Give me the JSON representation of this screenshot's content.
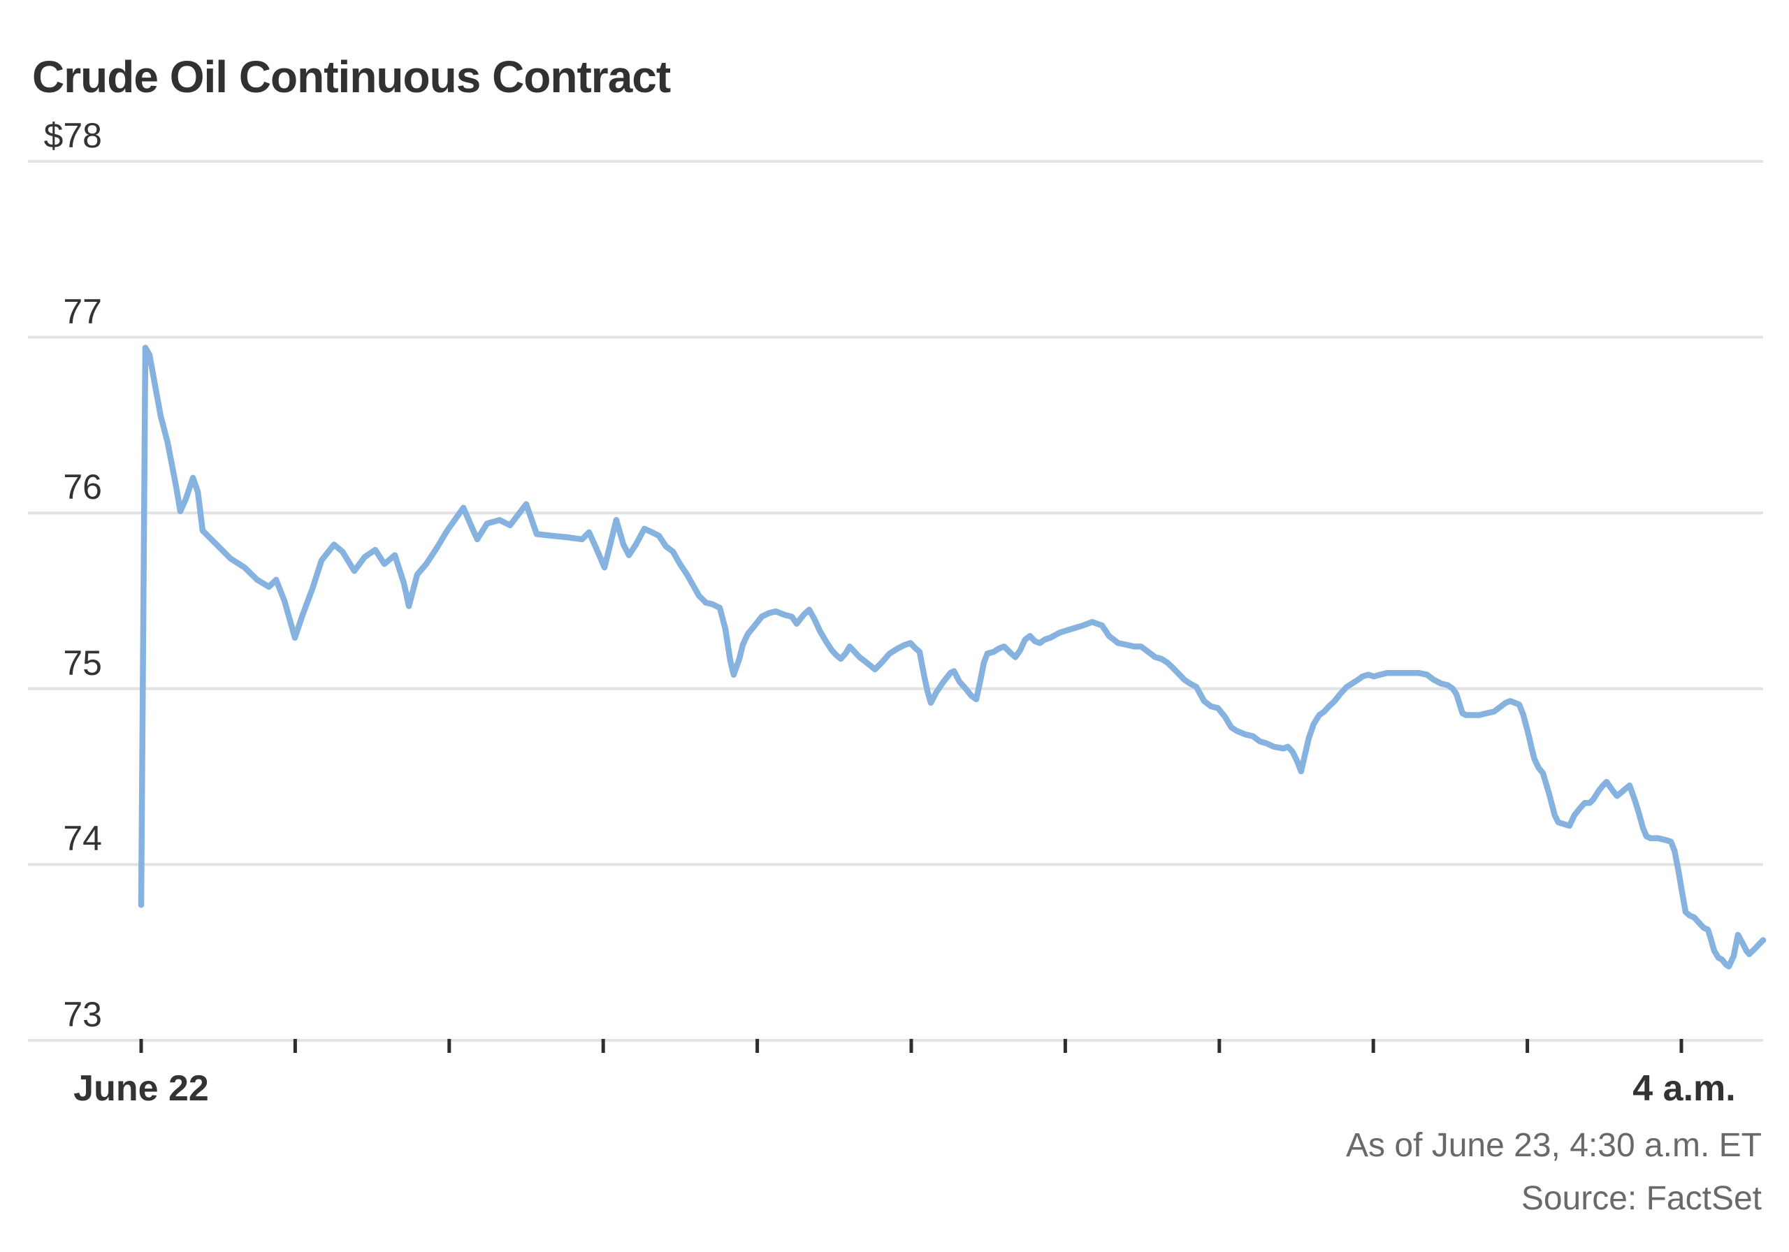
{
  "header": {
    "title": "Crude Oil Continuous Contract"
  },
  "footer": {
    "as_of": "As of June 23, 4:30 a.m. ET",
    "source": "Source: FactSet"
  },
  "colors": {
    "line": "#85b2de",
    "grid": "#e2e2e2",
    "tick": "#2f2f2f",
    "title_text": "#313131",
    "axis_label_text": "#333333",
    "footer_text": "#696969",
    "background": "#ffffff"
  },
  "chart_data": {
    "type": "line",
    "title": "Crude Oil Continuous Contract",
    "xlabel": "",
    "ylabel": "",
    "ylim": [
      73,
      78
    ],
    "grid": "horizontal",
    "legend": "none",
    "y_axis": {
      "values": [
        78,
        77,
        76,
        75,
        74,
        73
      ],
      "tick_labels": [
        "$78",
        "77",
        "76",
        "75",
        "74",
        "73"
      ]
    },
    "x_axis": {
      "first_tick_label": "June 22",
      "last_tick_label": "4 a.m.",
      "tick_count": 11,
      "note": "x of points is measured in evenly-spaced tick intervals; t=0 is the 'June 22' tick, t=10 is the '4 a.m.' tick"
    },
    "series": [
      {
        "name": "Crude Oil Continuous Contract price",
        "points": [
          [
            0.0,
            73.77
          ],
          [
            0.027,
            76.94
          ],
          [
            0.054,
            76.9
          ],
          [
            0.127,
            76.55
          ],
          [
            0.172,
            76.4
          ],
          [
            0.227,
            76.15
          ],
          [
            0.254,
            76.01
          ],
          [
            0.29,
            76.08
          ],
          [
            0.336,
            76.2
          ],
          [
            0.368,
            76.12
          ],
          [
            0.399,
            75.9
          ],
          [
            0.49,
            75.82
          ],
          [
            0.581,
            75.74
          ],
          [
            0.671,
            75.69
          ],
          [
            0.753,
            75.62
          ],
          [
            0.83,
            75.58
          ],
          [
            0.876,
            75.62
          ],
          [
            0.93,
            75.5
          ],
          [
            0.998,
            75.29
          ],
          [
            1.048,
            75.42
          ],
          [
            1.112,
            75.57
          ],
          [
            1.171,
            75.73
          ],
          [
            1.252,
            75.82
          ],
          [
            1.307,
            75.78
          ],
          [
            1.384,
            75.67
          ],
          [
            1.452,
            75.75
          ],
          [
            1.52,
            75.79
          ],
          [
            1.579,
            75.71
          ],
          [
            1.647,
            75.76
          ],
          [
            1.706,
            75.6
          ],
          [
            1.738,
            75.47
          ],
          [
            1.792,
            75.65
          ],
          [
            1.851,
            75.71
          ],
          [
            1.919,
            75.8
          ],
          [
            1.987,
            75.9
          ],
          [
            2.092,
            76.03
          ],
          [
            2.146,
            75.92
          ],
          [
            2.182,
            75.85
          ],
          [
            2.246,
            75.94
          ],
          [
            2.327,
            75.96
          ],
          [
            2.395,
            75.93
          ],
          [
            2.5,
            76.05
          ],
          [
            2.568,
            75.88
          ],
          [
            2.668,
            75.87
          ],
          [
            2.781,
            75.86
          ],
          [
            2.863,
            75.85
          ],
          [
            2.908,
            75.89
          ],
          [
            2.954,
            75.8
          ],
          [
            3.008,
            75.69
          ],
          [
            3.085,
            75.96
          ],
          [
            3.131,
            75.82
          ],
          [
            3.167,
            75.76
          ],
          [
            3.212,
            75.82
          ],
          [
            3.267,
            75.91
          ],
          [
            3.317,
            75.89
          ],
          [
            3.362,
            75.87
          ],
          [
            3.407,
            75.81
          ],
          [
            3.453,
            75.78
          ],
          [
            3.498,
            75.71
          ],
          [
            3.544,
            75.65
          ],
          [
            3.589,
            75.58
          ],
          [
            3.621,
            75.53
          ],
          [
            3.666,
            75.49
          ],
          [
            3.711,
            75.48
          ],
          [
            3.757,
            75.46
          ],
          [
            3.793,
            75.34
          ],
          [
            3.825,
            75.16
          ],
          [
            3.847,
            75.08
          ],
          [
            3.884,
            75.17
          ],
          [
            3.906,
            75.25
          ],
          [
            3.938,
            75.31
          ],
          [
            3.984,
            75.36
          ],
          [
            4.029,
            75.41
          ],
          [
            4.075,
            75.43
          ],
          [
            4.12,
            75.44
          ],
          [
            4.179,
            75.42
          ],
          [
            4.224,
            75.41
          ],
          [
            4.256,
            75.37
          ],
          [
            4.301,
            75.42
          ],
          [
            4.337,
            75.45
          ],
          [
            4.369,
            75.4
          ],
          [
            4.406,
            75.33
          ],
          [
            4.446,
            75.27
          ],
          [
            4.483,
            75.22
          ],
          [
            4.514,
            75.19
          ],
          [
            4.542,
            75.17
          ],
          [
            4.573,
            75.2
          ],
          [
            4.6,
            75.24
          ],
          [
            4.664,
            75.18
          ],
          [
            4.723,
            75.14
          ],
          [
            4.764,
            75.11
          ],
          [
            4.809,
            75.15
          ],
          [
            4.859,
            75.2
          ],
          [
            4.914,
            75.23
          ],
          [
            4.959,
            75.25
          ],
          [
            4.995,
            75.26
          ],
          [
            5.027,
            75.23
          ],
          [
            5.054,
            75.21
          ],
          [
            5.082,
            75.08
          ],
          [
            5.104,
            74.99
          ],
          [
            5.127,
            74.92
          ],
          [
            5.163,
            74.98
          ],
          [
            5.209,
            75.04
          ],
          [
            5.254,
            75.09
          ],
          [
            5.277,
            75.1
          ],
          [
            5.313,
            75.04
          ],
          [
            5.354,
            75.0
          ],
          [
            5.39,
            74.96
          ],
          [
            5.422,
            74.94
          ],
          [
            5.449,
            75.05
          ],
          [
            5.472,
            75.15
          ],
          [
            5.494,
            75.2
          ],
          [
            5.535,
            75.21
          ],
          [
            5.572,
            75.23
          ],
          [
            5.603,
            75.24
          ],
          [
            5.649,
            75.2
          ],
          [
            5.676,
            75.18
          ],
          [
            5.708,
            75.22
          ],
          [
            5.739,
            75.28
          ],
          [
            5.771,
            75.3
          ],
          [
            5.803,
            75.27
          ],
          [
            5.835,
            75.26
          ],
          [
            5.866,
            75.28
          ],
          [
            5.903,
            75.29
          ],
          [
            5.966,
            75.32
          ],
          [
            6.039,
            75.34
          ],
          [
            6.116,
            75.36
          ],
          [
            6.175,
            75.38
          ],
          [
            6.238,
            75.36
          ],
          [
            6.284,
            75.3
          ],
          [
            6.343,
            75.26
          ],
          [
            6.397,
            75.25
          ],
          [
            6.447,
            75.24
          ],
          [
            6.492,
            75.24
          ],
          [
            6.538,
            75.21
          ],
          [
            6.583,
            75.18
          ],
          [
            6.624,
            75.17
          ],
          [
            6.661,
            75.15
          ],
          [
            6.697,
            75.12
          ],
          [
            6.742,
            75.08
          ],
          [
            6.774,
            75.05
          ],
          [
            6.81,
            75.03
          ],
          [
            6.851,
            75.01
          ],
          [
            6.901,
            74.93
          ],
          [
            6.946,
            74.9
          ],
          [
            6.991,
            74.89
          ],
          [
            7.037,
            74.84
          ],
          [
            7.078,
            74.78
          ],
          [
            7.114,
            74.76
          ],
          [
            7.168,
            74.74
          ],
          [
            7.218,
            74.73
          ],
          [
            7.264,
            74.7
          ],
          [
            7.305,
            74.69
          ],
          [
            7.354,
            74.67
          ],
          [
            7.418,
            74.66
          ],
          [
            7.445,
            74.67
          ],
          [
            7.477,
            74.64
          ],
          [
            7.504,
            74.59
          ],
          [
            7.531,
            74.53
          ],
          [
            7.581,
            74.72
          ],
          [
            7.613,
            74.8
          ],
          [
            7.649,
            74.85
          ],
          [
            7.681,
            74.87
          ],
          [
            7.712,
            74.9
          ],
          [
            7.749,
            74.93
          ],
          [
            7.785,
            74.97
          ],
          [
            7.826,
            75.01
          ],
          [
            7.862,
            75.03
          ],
          [
            7.899,
            75.05
          ],
          [
            7.93,
            75.07
          ],
          [
            7.967,
            75.08
          ],
          [
            8.003,
            75.07
          ],
          [
            8.044,
            75.08
          ],
          [
            8.089,
            75.09
          ],
          [
            8.157,
            75.09
          ],
          [
            8.225,
            75.09
          ],
          [
            8.294,
            75.09
          ],
          [
            8.348,
            75.08
          ],
          [
            8.394,
            75.05
          ],
          [
            8.439,
            75.03
          ],
          [
            8.484,
            75.02
          ],
          [
            8.516,
            75.0
          ],
          [
            8.539,
            74.97
          ],
          [
            8.561,
            74.91
          ],
          [
            8.579,
            74.86
          ],
          [
            8.602,
            74.85
          ],
          [
            8.643,
            74.85
          ],
          [
            8.688,
            74.85
          ],
          [
            8.733,
            74.86
          ],
          [
            8.783,
            74.87
          ],
          [
            8.829,
            74.9
          ],
          [
            8.86,
            74.92
          ],
          [
            8.888,
            74.93
          ],
          [
            8.919,
            74.92
          ],
          [
            8.947,
            74.91
          ],
          [
            8.974,
            74.85
          ],
          [
            8.992,
            74.79
          ],
          [
            9.01,
            74.73
          ],
          [
            9.028,
            74.66
          ],
          [
            9.046,
            74.6
          ],
          [
            9.073,
            74.55
          ],
          [
            9.101,
            74.52
          ],
          [
            9.142,
            74.4
          ],
          [
            9.178,
            74.28
          ],
          [
            9.201,
            74.24
          ],
          [
            9.237,
            74.23
          ],
          [
            9.273,
            74.22
          ],
          [
            9.305,
            74.28
          ],
          [
            9.341,
            74.32
          ],
          [
            9.373,
            74.35
          ],
          [
            9.405,
            74.35
          ],
          [
            9.428,
            74.37
          ],
          [
            9.464,
            74.42
          ],
          [
            9.491,
            74.45
          ],
          [
            9.514,
            74.47
          ],
          [
            9.555,
            74.42
          ],
          [
            9.582,
            74.39
          ],
          [
            9.623,
            74.42
          ],
          [
            9.664,
            74.45
          ],
          [
            9.7,
            74.36
          ],
          [
            9.728,
            74.28
          ],
          [
            9.75,
            74.21
          ],
          [
            9.773,
            74.16
          ],
          [
            9.8,
            74.15
          ],
          [
            9.846,
            74.15
          ],
          [
            9.896,
            74.14
          ],
          [
            9.932,
            74.13
          ],
          [
            9.955,
            74.08
          ],
          [
            9.982,
            73.96
          ],
          [
            10.005,
            73.84
          ],
          [
            10.027,
            73.73
          ],
          [
            10.054,
            73.71
          ],
          [
            10.082,
            73.7
          ],
          [
            10.113,
            73.67
          ],
          [
            10.145,
            73.64
          ],
          [
            10.172,
            73.63
          ],
          [
            10.19,
            73.58
          ],
          [
            10.213,
            73.51
          ],
          [
            10.24,
            73.47
          ],
          [
            10.263,
            73.46
          ],
          [
            10.29,
            73.43
          ],
          [
            10.308,
            73.42
          ],
          [
            10.34,
            73.48
          ],
          [
            10.367,
            73.6
          ],
          [
            10.399,
            73.55
          ],
          [
            10.422,
            73.51
          ],
          [
            10.44,
            73.49
          ],
          [
            10.476,
            73.52
          ],
          [
            10.508,
            73.55
          ],
          [
            10.531,
            73.57
          ]
        ]
      }
    ]
  }
}
